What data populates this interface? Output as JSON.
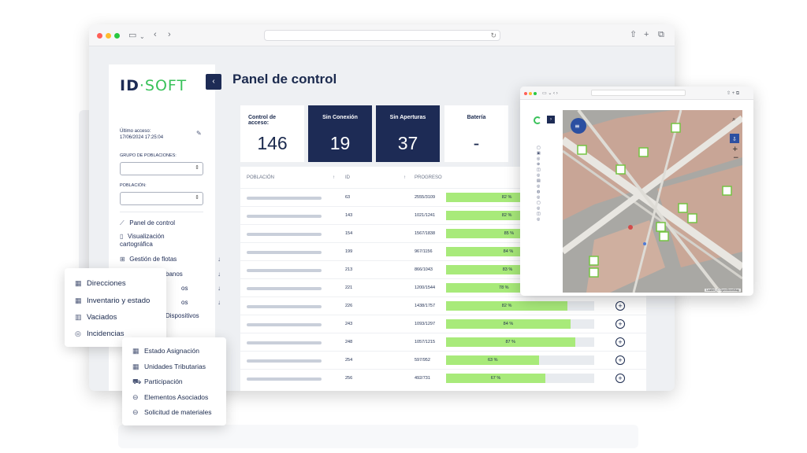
{
  "app": {
    "logo_id": "ID",
    "logo_dot": "·",
    "logo_soft": "SOFT",
    "page_title": "Panel de control",
    "collapse_symbol": "‹"
  },
  "sidebar": {
    "last_access_label": "Último acceso:",
    "last_access_value": "17/06/2024 17:25:04",
    "group_label": "GRUPO DE POBLACIONES:",
    "population_label": "POBLACIÓN:",
    "items": [
      {
        "label": "Panel de control",
        "icon": "chart-icon"
      },
      {
        "label": "Visualización cartográfica",
        "icon": "map-icon"
      },
      {
        "label": "Gestión de flotas",
        "icon": "fleet-icon"
      },
      {
        "label": "banos",
        "icon": "urban-icon"
      },
      {
        "label": "os",
        "icon": "list-icon"
      },
      {
        "label": "os",
        "icon": "list-icon"
      },
      {
        "label": "Dispositivos",
        "icon": "device-icon"
      }
    ]
  },
  "cards": [
    {
      "title": "Control de acceso:",
      "value": "146"
    },
    {
      "title": "Sin Conexión",
      "value": "19"
    },
    {
      "title": "Sin Aperturas",
      "value": "37"
    },
    {
      "title": "Batería",
      "value": "-"
    }
  ],
  "table": {
    "headers": {
      "poblacion": "POBLACIÓN",
      "id": "ID",
      "progreso": "PROGRESO"
    },
    "rows": [
      {
        "id": "63",
        "progress": "2555/3109",
        "pct": "82 %",
        "fill": 0.82
      },
      {
        "id": "143",
        "progress": "1021/1241",
        "pct": "82 %",
        "fill": 0.82
      },
      {
        "id": "154",
        "progress": "1567/1838",
        "pct": "85 %",
        "fill": 0.85
      },
      {
        "id": "199",
        "progress": "967/1156",
        "pct": "84 %",
        "fill": 0.84
      },
      {
        "id": "213",
        "progress": "866/1043",
        "pct": "83 %",
        "fill": 0.83
      },
      {
        "id": "221",
        "progress": "1200/1544",
        "pct": "78 %",
        "fill": 0.78
      },
      {
        "id": "226",
        "progress": "1438/1757",
        "pct": "82 %",
        "fill": 0.82
      },
      {
        "id": "243",
        "progress": "1093/1297",
        "pct": "84 %",
        "fill": 0.84
      },
      {
        "id": "248",
        "progress": "1057/1215",
        "pct": "87 %",
        "fill": 0.87
      },
      {
        "id": "254",
        "progress": "597/952",
        "pct": "63 %",
        "fill": 0.63
      },
      {
        "id": "256",
        "progress": "492/731",
        "pct": "67 %",
        "fill": 0.67
      }
    ]
  },
  "menu_left": {
    "items": [
      {
        "label": "Direcciones",
        "icon": "building-icon"
      },
      {
        "label": "Inventario y estado",
        "icon": "building-icon"
      },
      {
        "label": "Vaciados",
        "icon": "container-icon"
      },
      {
        "label": "Incidencias",
        "icon": "alert-icon"
      }
    ]
  },
  "menu_bottom": {
    "items": [
      {
        "label": "Estado Asignación",
        "icon": "grid-icon"
      },
      {
        "label": "Unidades Tributarias",
        "icon": "building-icon"
      },
      {
        "label": "Participación",
        "icon": "truck-icon"
      },
      {
        "label": "Elementos Asociados",
        "icon": "bin-icon"
      },
      {
        "label": "Solicitud de materiales",
        "icon": "bin-icon"
      }
    ]
  },
  "map": {
    "attribution": "Leaflet | © OpenStreetMap"
  },
  "colors": {
    "navy": "#1d2b55",
    "green": "#39c25a",
    "progress_fill": "#a8ea7a"
  }
}
